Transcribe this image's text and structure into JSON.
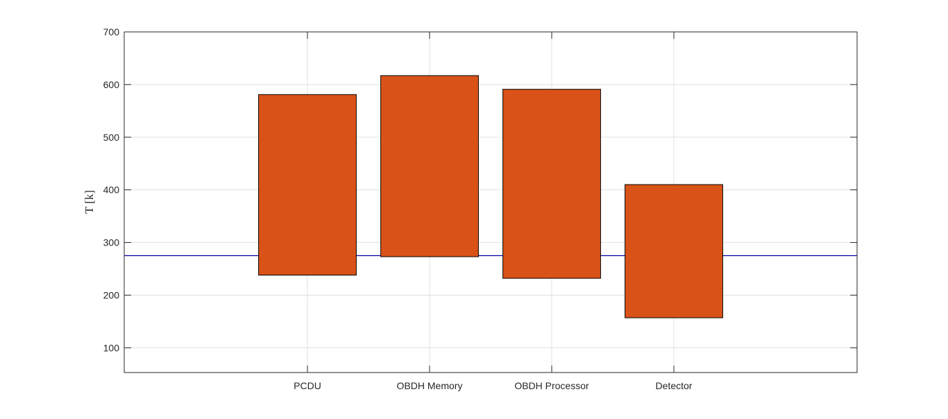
{
  "chart_data": {
    "type": "bar",
    "subtype": "floating-range",
    "categories": [
      "PCDU",
      "OBDH Memory",
      "OBDH Processor",
      "Detector"
    ],
    "series": [
      {
        "low": [
          238,
          273,
          232,
          157
        ],
        "high": [
          581,
          617,
          591,
          410
        ],
        "color": "#D95319",
        "edge_color": "#000000"
      }
    ],
    "reference_line": {
      "y": 275,
      "color": "#0000AA"
    },
    "title": "",
    "xlabel": "",
    "ylabel": "T [k]",
    "ylim": [
      53,
      700
    ],
    "yticks": [
      100,
      200,
      300,
      400,
      500,
      600,
      700
    ],
    "grid": true
  }
}
